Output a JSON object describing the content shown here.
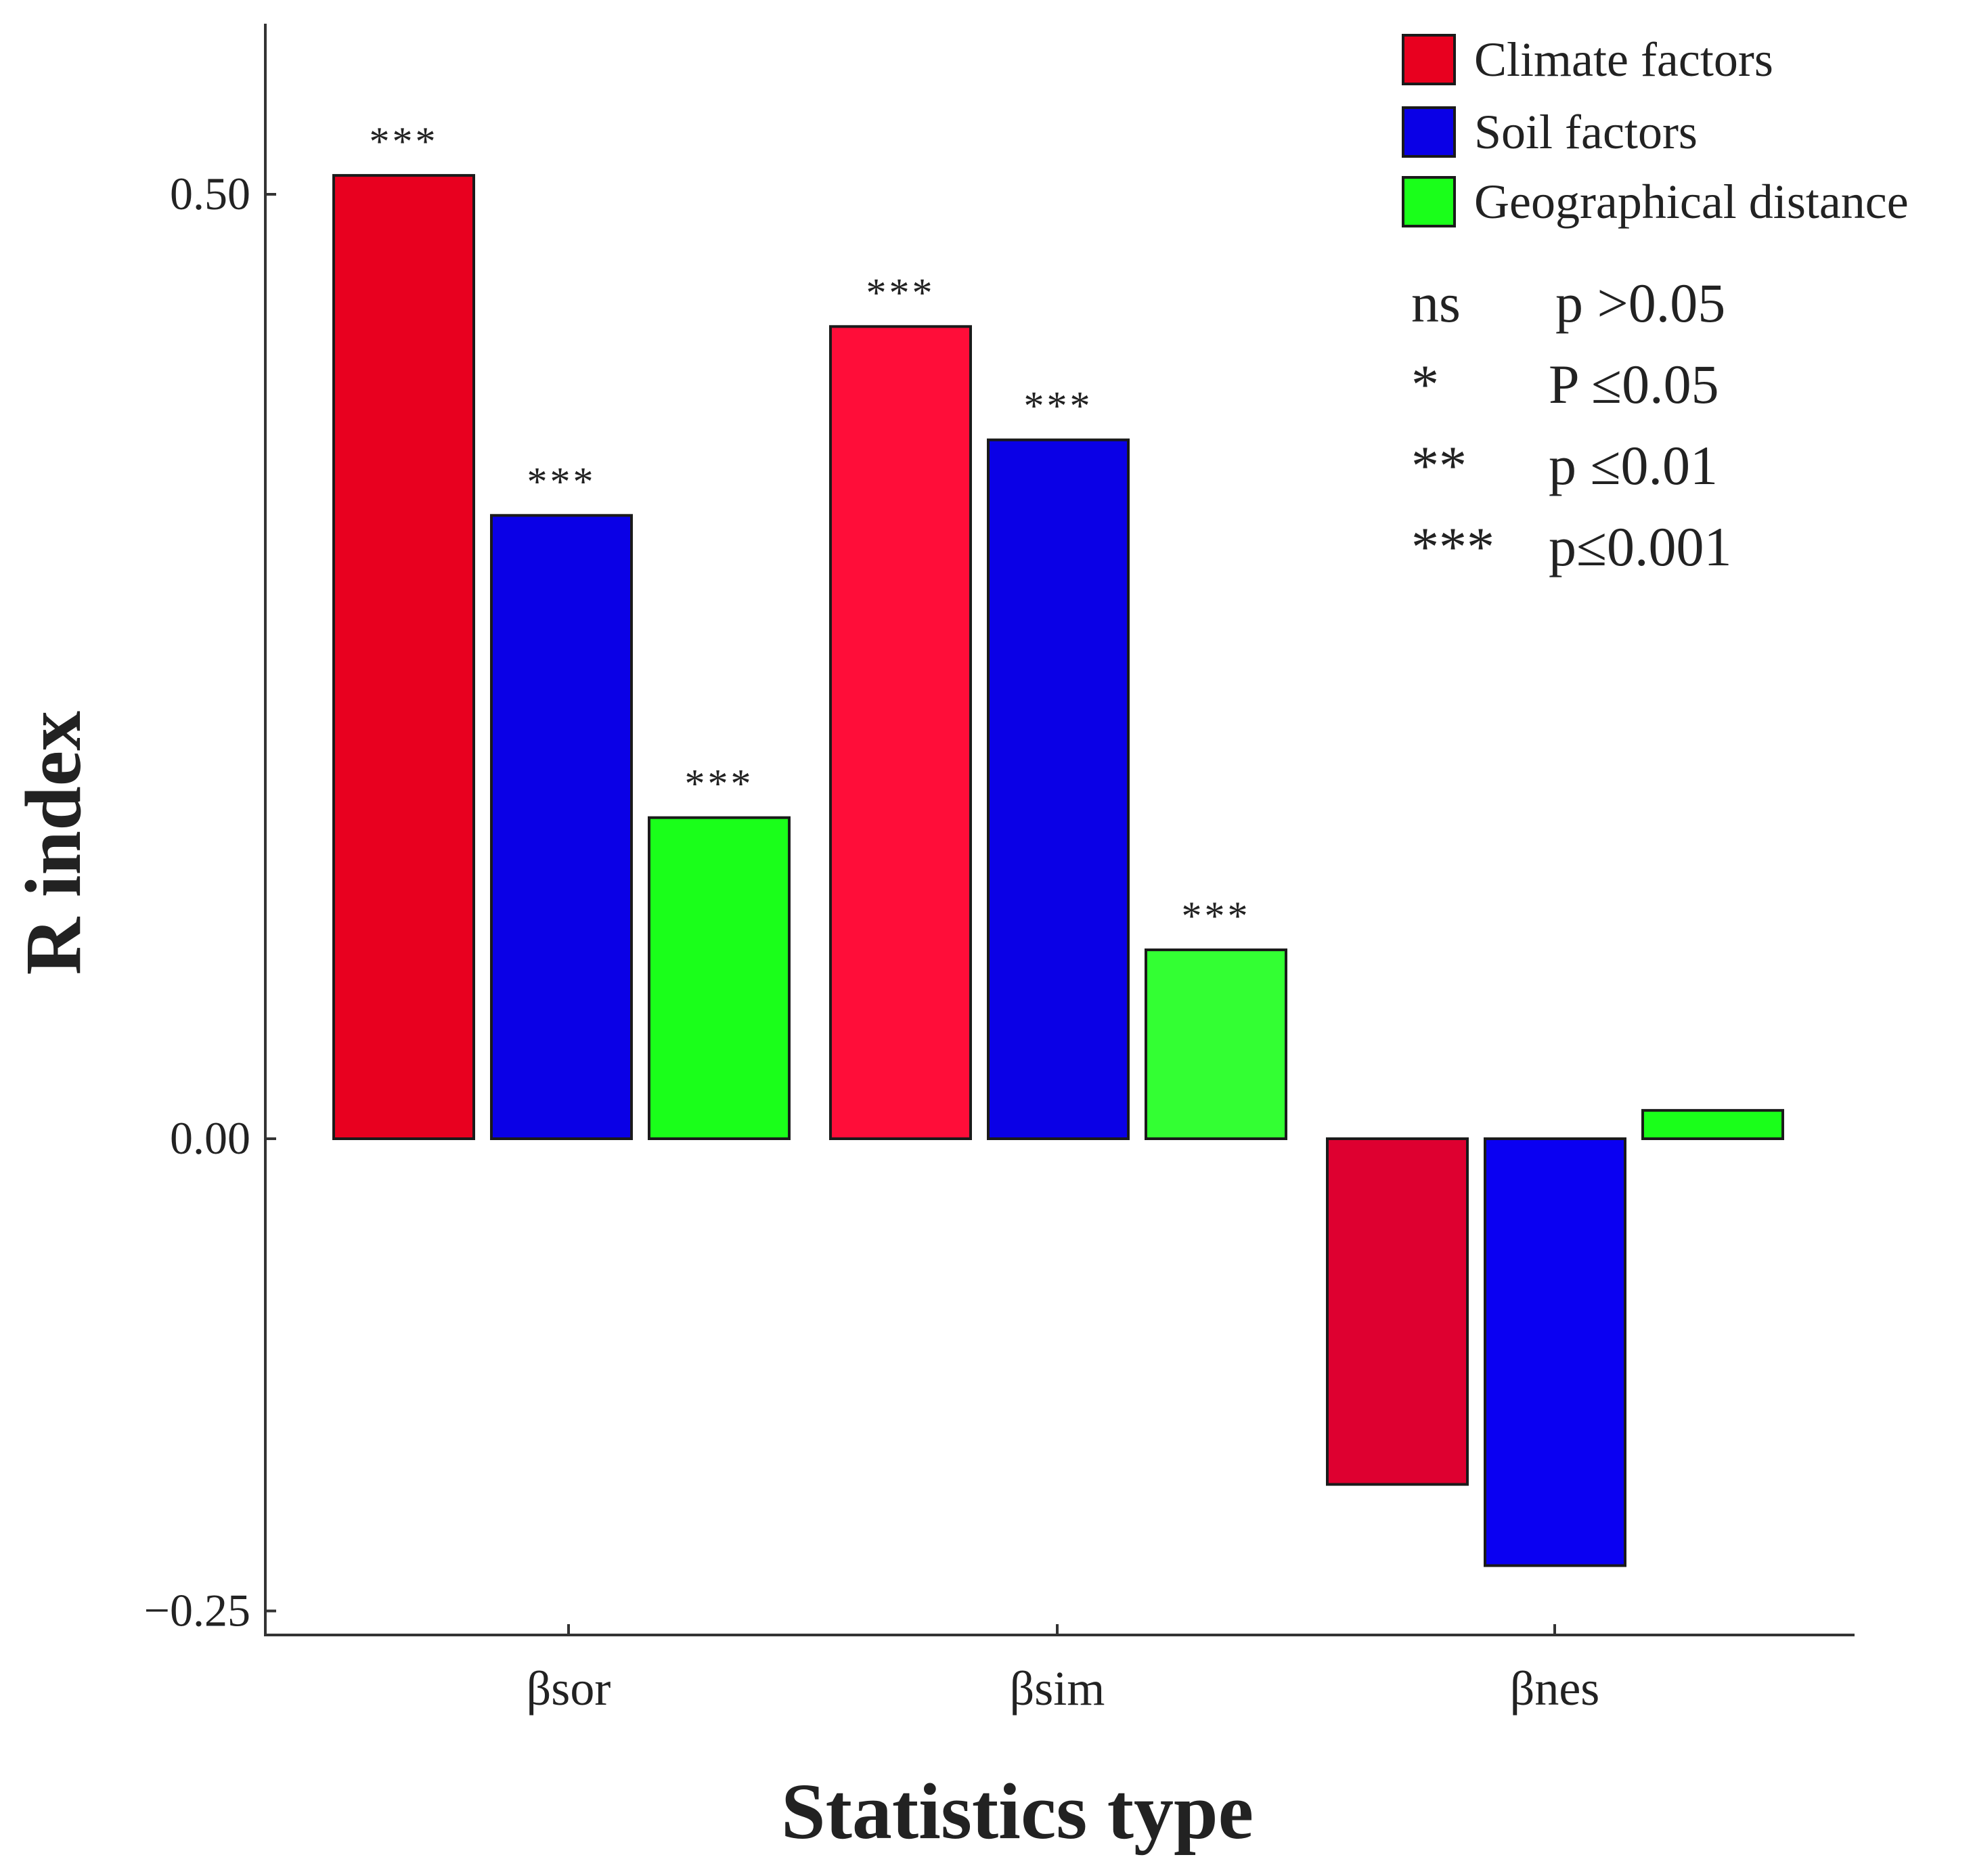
{
  "chart_data": {
    "type": "bar",
    "title": "",
    "xlabel": "Statistics type",
    "ylabel": "R index",
    "ylim": [
      -0.265,
      0.59
    ],
    "yticks": [
      {
        "value": 0.5,
        "label": "0.50"
      },
      {
        "value": 0.0,
        "label": "0.00"
      },
      {
        "value": -0.25,
        "label": "−0.25"
      }
    ],
    "categories": [
      "βsor",
      "βsim",
      "βnes"
    ],
    "series": [
      {
        "name": "Climate factors",
        "color": "#e8001f",
        "values": [
          0.51,
          0.43,
          -0.183
        ],
        "sig": [
          "***",
          "***",
          ""
        ]
      },
      {
        "name": "Soil factors",
        "color": "#0a00e6",
        "values": [
          0.33,
          0.37,
          -0.226
        ],
        "sig": [
          "***",
          "***",
          ""
        ]
      },
      {
        "name": "Geographical distance",
        "color": "#1aff1a",
        "values": [
          0.17,
          0.1,
          0.015
        ],
        "sig": [
          "***",
          "***",
          ""
        ]
      }
    ],
    "bar_colors": [
      [
        "#e8001f",
        "#0a00e6",
        "#1aff1a"
      ],
      [
        "#ff0d39",
        "#0a00e6",
        "#33ff33"
      ],
      [
        "#de0030",
        "#0a00f2",
        "#1aff1a"
      ]
    ],
    "legend_position": "top-right",
    "significance_key": [
      {
        "symbol": "ns",
        "condition": "p >0.05"
      },
      {
        "symbol": "*",
        "condition": "P ≤0.05"
      },
      {
        "symbol": "**",
        "condition": "p ≤0.01"
      },
      {
        "symbol": "***",
        "condition": "p≤0.001"
      }
    ],
    "grid": false
  }
}
